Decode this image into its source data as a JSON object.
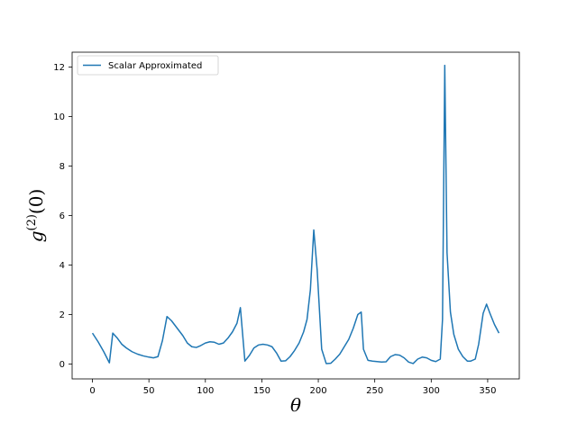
{
  "chart_data": {
    "type": "line",
    "title": "",
    "xlabel": "θ",
    "ylabel": {
      "base": "g",
      "sup": "(2)",
      "rest": "(0)"
    },
    "xlim": [
      -18,
      378
    ],
    "ylim": [
      -0.6,
      12.6
    ],
    "xticks": [
      0,
      50,
      100,
      150,
      200,
      250,
      300,
      350
    ],
    "yticks": [
      0,
      2,
      4,
      6,
      8,
      10,
      12
    ],
    "grid": false,
    "legend_position": "upper-left",
    "series": [
      {
        "name": "Scalar Approximated",
        "color": "#1f77b4",
        "x": [
          0,
          5,
          10,
          15,
          18,
          22,
          26,
          30,
          35,
          40,
          45,
          50,
          54,
          58,
          62,
          66,
          70,
          75,
          80,
          84,
          88,
          92,
          96,
          100,
          104,
          108,
          112,
          116,
          120,
          124,
          128,
          131,
          135,
          139,
          143,
          147,
          151,
          155,
          159,
          163,
          167,
          171,
          175,
          179,
          183,
          187,
          190,
          193,
          196,
          199,
          203,
          207,
          211,
          215,
          219,
          223,
          227,
          231,
          235,
          238,
          240,
          244,
          248,
          252,
          256,
          260,
          264,
          268,
          272,
          276,
          280,
          284,
          288,
          292,
          296,
          300,
          304,
          308,
          310,
          312,
          314,
          317,
          320,
          324,
          328,
          332,
          335,
          339,
          342,
          346,
          349,
          352,
          356,
          360
        ],
        "y": [
          1.25,
          0.9,
          0.5,
          0.05,
          1.25,
          1.05,
          0.8,
          0.65,
          0.5,
          0.4,
          0.33,
          0.28,
          0.25,
          0.3,
          0.95,
          1.92,
          1.75,
          1.45,
          1.15,
          0.85,
          0.7,
          0.67,
          0.75,
          0.85,
          0.9,
          0.88,
          0.8,
          0.85,
          1.05,
          1.3,
          1.65,
          2.28,
          0.12,
          0.35,
          0.65,
          0.77,
          0.8,
          0.77,
          0.7,
          0.45,
          0.12,
          0.13,
          0.3,
          0.55,
          0.85,
          1.3,
          1.8,
          3.0,
          5.42,
          3.8,
          0.6,
          0.02,
          0.03,
          0.2,
          0.4,
          0.7,
          1.0,
          1.45,
          2.0,
          2.1,
          0.6,
          0.15,
          0.12,
          0.1,
          0.08,
          0.09,
          0.3,
          0.38,
          0.36,
          0.25,
          0.08,
          0.02,
          0.2,
          0.28,
          0.25,
          0.15,
          0.1,
          0.2,
          1.8,
          12.07,
          4.5,
          2.1,
          1.2,
          0.6,
          0.3,
          0.12,
          0.12,
          0.2,
          0.8,
          2.05,
          2.42,
          2.05,
          1.6,
          1.25
        ]
      }
    ]
  }
}
